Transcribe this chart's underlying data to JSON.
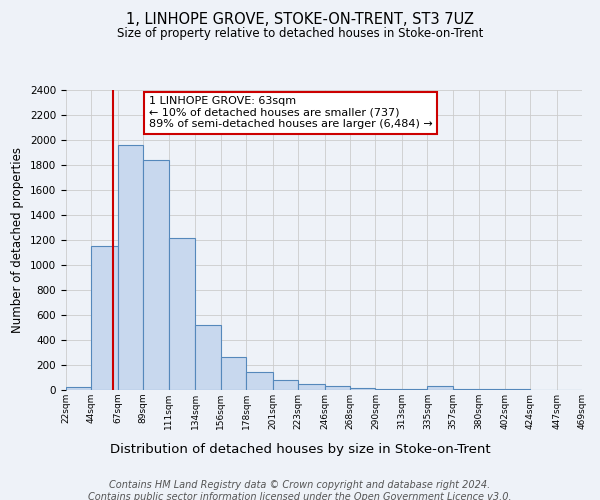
{
  "title": "1, LINHOPE GROVE, STOKE-ON-TRENT, ST3 7UZ",
  "subtitle": "Size of property relative to detached houses in Stoke-on-Trent",
  "xlabel": "Distribution of detached houses by size in Stoke-on-Trent",
  "ylabel": "Number of detached properties",
  "bin_edges": [
    22,
    44,
    67,
    89,
    111,
    134,
    156,
    178,
    201,
    223,
    246,
    268,
    290,
    313,
    335,
    357,
    380,
    402,
    424,
    447,
    469
  ],
  "bin_counts": [
    25,
    1150,
    1960,
    1840,
    1220,
    520,
    265,
    148,
    80,
    50,
    35,
    20,
    8,
    5,
    30,
    5,
    5,
    8,
    3,
    2
  ],
  "bar_facecolor": "#c8d8ee",
  "bar_edgecolor": "#5588bb",
  "bar_linewidth": 0.8,
  "vline_x": 63,
  "vline_color": "#cc0000",
  "vline_linewidth": 1.5,
  "annotation_line1": "1 LINHOPE GROVE: 63sqm",
  "annotation_line2": "← 10% of detached houses are smaller (737)",
  "annotation_line3": "89% of semi-detached houses are larger (6,484) →",
  "annotation_box_edgecolor": "#cc0000",
  "annotation_box_facecolor": "#ffffff",
  "annotation_fontsize": 8,
  "grid_color": "#cccccc",
  "background_color": "#eef2f8",
  "ylim": [
    0,
    2400
  ],
  "yticks": [
    0,
    200,
    400,
    600,
    800,
    1000,
    1200,
    1400,
    1600,
    1800,
    2000,
    2200,
    2400
  ],
  "tick_labels": [
    "22sqm",
    "44sqm",
    "67sqm",
    "89sqm",
    "111sqm",
    "134sqm",
    "156sqm",
    "178sqm",
    "201sqm",
    "223sqm",
    "246sqm",
    "268sqm",
    "290sqm",
    "313sqm",
    "335sqm",
    "357sqm",
    "380sqm",
    "402sqm",
    "424sqm",
    "447sqm",
    "469sqm"
  ],
  "footer_line1": "Contains HM Land Registry data © Crown copyright and database right 2024.",
  "footer_line2": "Contains public sector information licensed under the Open Government Licence v3.0.",
  "title_fontsize": 10.5,
  "subtitle_fontsize": 8.5,
  "xlabel_fontsize": 9.5,
  "ylabel_fontsize": 8.5,
  "footer_fontsize": 7
}
